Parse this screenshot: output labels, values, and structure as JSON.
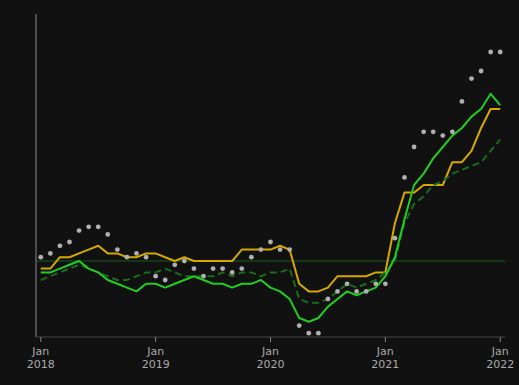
{
  "chart_data": {
    "type": "line",
    "categories": [
      "Jan\n2018",
      null,
      null,
      null,
      null,
      null,
      null,
      null,
      null,
      null,
      null,
      null,
      "Jan\n2019",
      null,
      null,
      null,
      null,
      null,
      null,
      null,
      null,
      null,
      null,
      null,
      "Jan\n2020",
      null,
      null,
      null,
      null,
      null,
      null,
      null,
      null,
      null,
      null,
      null,
      "Jan\n2021",
      null,
      null,
      null,
      null,
      null,
      null,
      null,
      null,
      null,
      null,
      null,
      "Jan\n2022"
    ],
    "series": [
      {
        "color": "#b0b0b0",
        "marker": "circle",
        "line_style": "none",
        "values": [
          2.1,
          2.2,
          2.4,
          2.5,
          2.8,
          2.9,
          2.9,
          2.7,
          2.3,
          2.1,
          2.2,
          2.1,
          1.6,
          1.5,
          1.9,
          2.0,
          1.8,
          1.6,
          1.8,
          1.8,
          1.7,
          1.8,
          2.1,
          2.3,
          2.5,
          2.3,
          2.3,
          0.3,
          0.1,
          0.1,
          1.0,
          1.2,
          1.4,
          1.2,
          1.2,
          1.4,
          1.4,
          2.6,
          4.2,
          5.0,
          5.4,
          5.4,
          5.3,
          5.4,
          6.2,
          6.8,
          7.0,
          7.5,
          7.5
        ]
      },
      {
        "color": "#d4a800",
        "line_style": "solid",
        "values": [
          1.8,
          1.8,
          2.1,
          2.1,
          2.2,
          2.3,
          2.4,
          2.2,
          2.2,
          2.1,
          2.1,
          2.2,
          2.2,
          2.1,
          2.0,
          2.1,
          2.0,
          2.0,
          2.0,
          2.0,
          2.0,
          2.3,
          2.3,
          2.3,
          2.3,
          2.4,
          2.3,
          1.4,
          1.2,
          1.2,
          1.3,
          1.6,
          1.6,
          1.6,
          1.6,
          1.7,
          1.7,
          3.0,
          3.8,
          3.8,
          4.0,
          4.0,
          4.0,
          4.6,
          4.6,
          4.9,
          5.5,
          6.0,
          6.0
        ]
      },
      {
        "color": "#1a6b1a",
        "line_style": "dashed",
        "values": [
          1.5,
          1.6,
          1.7,
          1.8,
          1.9,
          1.8,
          1.7,
          1.6,
          1.5,
          1.5,
          1.6,
          1.7,
          1.7,
          1.8,
          1.7,
          1.6,
          1.6,
          1.6,
          1.6,
          1.7,
          1.6,
          1.7,
          1.7,
          1.6,
          1.7,
          1.7,
          1.8,
          1.0,
          0.9,
          0.9,
          1.0,
          1.2,
          1.4,
          1.3,
          1.4,
          1.5,
          1.7,
          2.0,
          3.0,
          3.5,
          3.7,
          4.0,
          4.1,
          4.3,
          4.4,
          4.5,
          4.6,
          4.9,
          5.2
        ]
      },
      {
        "color": "#22cc22",
        "line_style": "solid",
        "values": [
          1.7,
          1.7,
          1.8,
          1.9,
          2.0,
          1.8,
          1.7,
          1.5,
          1.4,
          1.3,
          1.2,
          1.4,
          1.4,
          1.3,
          1.4,
          1.5,
          1.6,
          1.5,
          1.4,
          1.4,
          1.3,
          1.4,
          1.4,
          1.5,
          1.3,
          1.2,
          1.0,
          0.5,
          0.4,
          0.5,
          0.8,
          1.0,
          1.2,
          1.1,
          1.2,
          1.3,
          1.6,
          2.1,
          3.1,
          4.0,
          4.3,
          4.7,
          5.0,
          5.3,
          5.5,
          5.8,
          6.0,
          6.4,
          6.1
        ]
      }
    ],
    "ylim": [
      0.0,
      8.5
    ],
    "reference_lines": [
      {
        "value": 2.0,
        "color": "#1a5c1a"
      }
    ],
    "tick_labels": "x"
  }
}
